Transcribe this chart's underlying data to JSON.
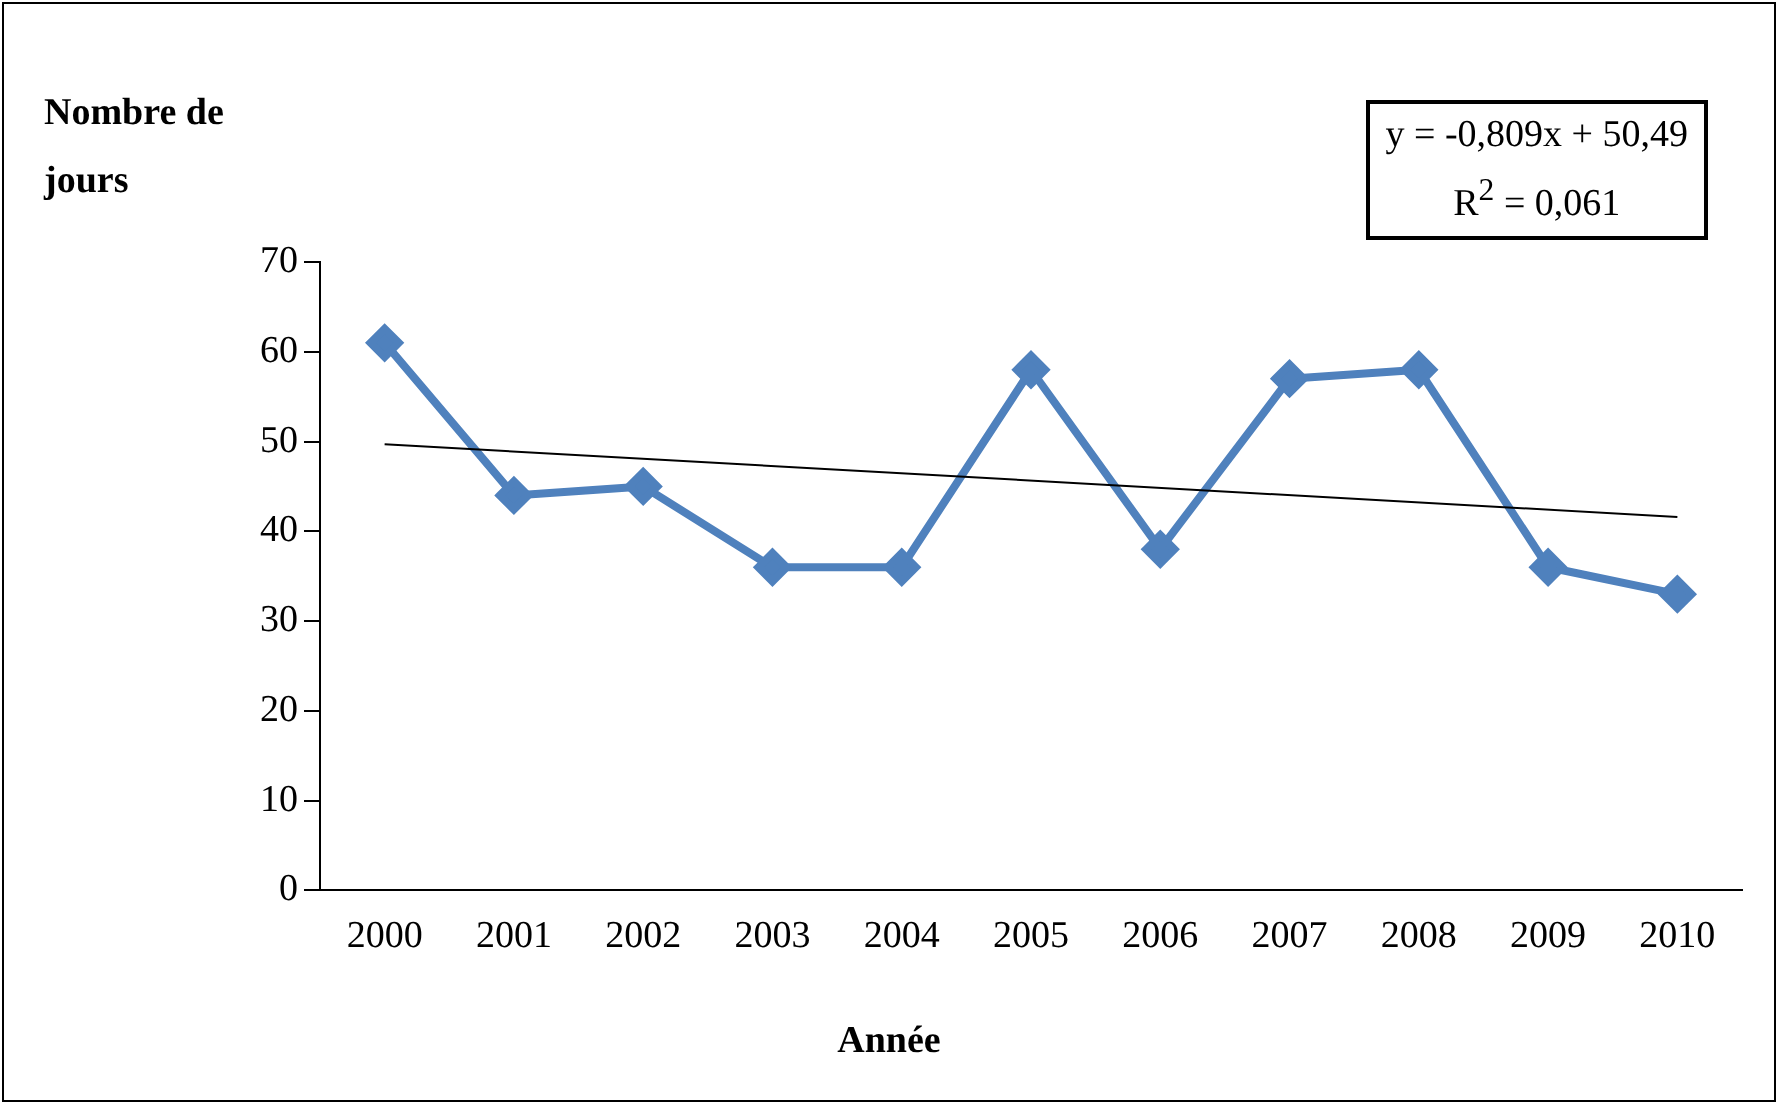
{
  "chart_data": {
    "type": "line",
    "ylabel": "Nombre de jours",
    "xlabel": "Année",
    "categories": [
      "2000",
      "2001",
      "2002",
      "2003",
      "2004",
      "2005",
      "2006",
      "2007",
      "2008",
      "2009",
      "2010"
    ],
    "series": [
      {
        "color": "#4f81bd",
        "values": [
          61,
          44,
          45,
          36,
          36,
          58,
          38,
          57,
          58,
          36,
          33
        ],
        "marker": "diamond"
      },
      {
        "color": "#000000",
        "values": [
          49.7,
          null,
          null,
          null,
          null,
          null,
          null,
          null,
          null,
          null,
          41.6
        ],
        "marker": "none"
      }
    ],
    "annotations": [
      "y = -0,809x + 50,49",
      "R$^{2}$ = 0,061"
    ],
    "ylim": [
      0,
      70
    ],
    "yticks": [
      0,
      10,
      20,
      30,
      40,
      50,
      60,
      70
    ],
    "grid": false,
    "legend": false
  }
}
